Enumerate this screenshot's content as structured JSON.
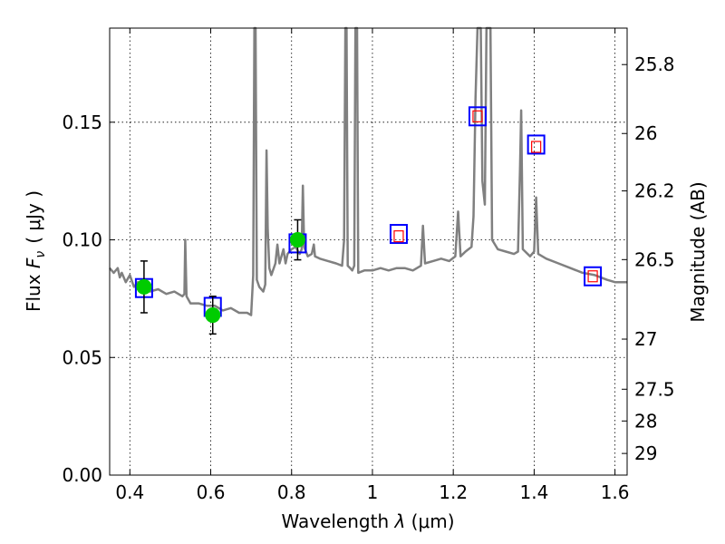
{
  "chart_data": {
    "type": "line",
    "xlabel": "Wavelength  λ (μm)",
    "ylabel": "Flux  F_ν  ( μJy )",
    "ylabel_parts": {
      "prefix": "Flux  ",
      "symbol": "F",
      "subscript": "ν",
      "unit": "(  μJy )"
    },
    "xlabel_parts": {
      "prefix": "Wavelength  ",
      "symbol": "λ",
      "unit": " (μm)"
    },
    "y2label": "Magnitude (AB)",
    "xlim": [
      0.35,
      1.63
    ],
    "ylim": [
      0.0,
      0.19
    ],
    "grid": true,
    "x_ticks": [
      0.4,
      0.6,
      0.8,
      1.0,
      1.2,
      1.4,
      1.6
    ],
    "x_tick_labels": [
      "0.4",
      "0.6",
      "0.8",
      "1",
      "1.2",
      "1.4",
      "1.6"
    ],
    "y_ticks": [
      0.0,
      0.05,
      0.1,
      0.15
    ],
    "y_tick_labels": [
      "0.00",
      "0.05",
      "0.10",
      "0.15"
    ],
    "y2_ticks": [
      {
        "label": "25.8",
        "flux": 0.1745
      },
      {
        "label": "26",
        "flux": 0.1452
      },
      {
        "label": "26.2",
        "flux": 0.1208
      },
      {
        "label": "26.5",
        "flux": 0.0916
      },
      {
        "label": "27",
        "flux": 0.0578
      },
      {
        "label": "27.5",
        "flux": 0.0365
      },
      {
        "label": "28",
        "flux": 0.023
      },
      {
        "label": "29",
        "flux": 0.0092
      }
    ],
    "series": [
      {
        "name": "model-spectrum",
        "style": "line",
        "color": "#808080",
        "points": [
          [
            0.35,
            0.088
          ],
          [
            0.36,
            0.086
          ],
          [
            0.37,
            0.088
          ],
          [
            0.375,
            0.084
          ],
          [
            0.38,
            0.086
          ],
          [
            0.39,
            0.082
          ],
          [
            0.4,
            0.085
          ],
          [
            0.41,
            0.08
          ],
          [
            0.42,
            0.082
          ],
          [
            0.43,
            0.079
          ],
          [
            0.45,
            0.078
          ],
          [
            0.47,
            0.079
          ],
          [
            0.49,
            0.077
          ],
          [
            0.51,
            0.078
          ],
          [
            0.53,
            0.076
          ],
          [
            0.535,
            0.077
          ],
          [
            0.537,
            0.1
          ],
          [
            0.54,
            0.076
          ],
          [
            0.55,
            0.073
          ],
          [
            0.57,
            0.073
          ],
          [
            0.59,
            0.072
          ],
          [
            0.61,
            0.072
          ],
          [
            0.63,
            0.07
          ],
          [
            0.65,
            0.071
          ],
          [
            0.67,
            0.069
          ],
          [
            0.69,
            0.069
          ],
          [
            0.7,
            0.068
          ],
          [
            0.705,
            0.085
          ],
          [
            0.708,
            0.19
          ],
          [
            0.711,
            0.19
          ],
          [
            0.714,
            0.083
          ],
          [
            0.72,
            0.08
          ],
          [
            0.73,
            0.078
          ],
          [
            0.735,
            0.081
          ],
          [
            0.738,
            0.138
          ],
          [
            0.741,
            0.105
          ],
          [
            0.745,
            0.088
          ],
          [
            0.75,
            0.085
          ],
          [
            0.76,
            0.09
          ],
          [
            0.765,
            0.098
          ],
          [
            0.77,
            0.09
          ],
          [
            0.78,
            0.096
          ],
          [
            0.785,
            0.09
          ],
          [
            0.79,
            0.094
          ],
          [
            0.8,
            0.096
          ],
          [
            0.81,
            0.097
          ],
          [
            0.82,
            0.094
          ],
          [
            0.825,
            0.096
          ],
          [
            0.828,
            0.123
          ],
          [
            0.831,
            0.097
          ],
          [
            0.84,
            0.093
          ],
          [
            0.85,
            0.094
          ],
          [
            0.855,
            0.098
          ],
          [
            0.858,
            0.093
          ],
          [
            0.87,
            0.092
          ],
          [
            0.89,
            0.091
          ],
          [
            0.91,
            0.09
          ],
          [
            0.925,
            0.089
          ],
          [
            0.93,
            0.1
          ],
          [
            0.933,
            0.19
          ],
          [
            0.936,
            0.19
          ],
          [
            0.939,
            0.089
          ],
          [
            0.945,
            0.088
          ],
          [
            0.95,
            0.087
          ],
          [
            0.955,
            0.089
          ],
          [
            0.958,
            0.19
          ],
          [
            0.962,
            0.19
          ],
          [
            0.965,
            0.086
          ],
          [
            0.98,
            0.087
          ],
          [
            1.0,
            0.087
          ],
          [
            1.02,
            0.088
          ],
          [
            1.04,
            0.087
          ],
          [
            1.06,
            0.088
          ],
          [
            1.08,
            0.088
          ],
          [
            1.1,
            0.087
          ],
          [
            1.12,
            0.089
          ],
          [
            1.125,
            0.106
          ],
          [
            1.13,
            0.09
          ],
          [
            1.15,
            0.091
          ],
          [
            1.17,
            0.092
          ],
          [
            1.19,
            0.091
          ],
          [
            1.205,
            0.093
          ],
          [
            1.212,
            0.112
          ],
          [
            1.218,
            0.093
          ],
          [
            1.23,
            0.095
          ],
          [
            1.245,
            0.097
          ],
          [
            1.25,
            0.11
          ],
          [
            1.255,
            0.16
          ],
          [
            1.26,
            0.19
          ],
          [
            1.268,
            0.19
          ],
          [
            1.272,
            0.125
          ],
          [
            1.278,
            0.115
          ],
          [
            1.282,
            0.19
          ],
          [
            1.292,
            0.19
          ],
          [
            1.296,
            0.1
          ],
          [
            1.31,
            0.096
          ],
          [
            1.33,
            0.095
          ],
          [
            1.35,
            0.094
          ],
          [
            1.36,
            0.095
          ],
          [
            1.365,
            0.13
          ],
          [
            1.368,
            0.155
          ],
          [
            1.372,
            0.096
          ],
          [
            1.39,
            0.093
          ],
          [
            1.4,
            0.095
          ],
          [
            1.405,
            0.118
          ],
          [
            1.41,
            0.094
          ],
          [
            1.43,
            0.092
          ],
          [
            1.46,
            0.09
          ],
          [
            1.49,
            0.088
          ],
          [
            1.52,
            0.086
          ],
          [
            1.55,
            0.085
          ],
          [
            1.58,
            0.083
          ],
          [
            1.6,
            0.082
          ],
          [
            1.63,
            0.082
          ]
        ]
      },
      {
        "name": "model-magnitudes-blue",
        "style": "open-square",
        "color": "#0000ff",
        "points": [
          [
            0.435,
            0.0795
          ],
          [
            0.605,
            0.0715
          ],
          [
            0.815,
            0.0985
          ],
          [
            1.065,
            0.1025
          ],
          [
            1.26,
            0.1525
          ],
          [
            1.405,
            0.1405
          ],
          [
            1.545,
            0.0845
          ]
        ]
      },
      {
        "name": "model-magnitudes-red",
        "style": "small-open-square",
        "color": "#ff0000",
        "points": [
          [
            1.065,
            0.1015
          ],
          [
            1.26,
            0.1525
          ],
          [
            1.405,
            0.1395
          ],
          [
            1.545,
            0.0845
          ]
        ]
      },
      {
        "name": "observed-photometry",
        "style": "filled-circle-errorbar",
        "color": "#00cc00",
        "points": [
          {
            "x": 0.435,
            "y": 0.08,
            "yerr": 0.011
          },
          {
            "x": 0.605,
            "y": 0.068,
            "yerr": 0.008
          },
          {
            "x": 0.815,
            "y": 0.1,
            "yerr": 0.0085
          }
        ]
      }
    ]
  }
}
